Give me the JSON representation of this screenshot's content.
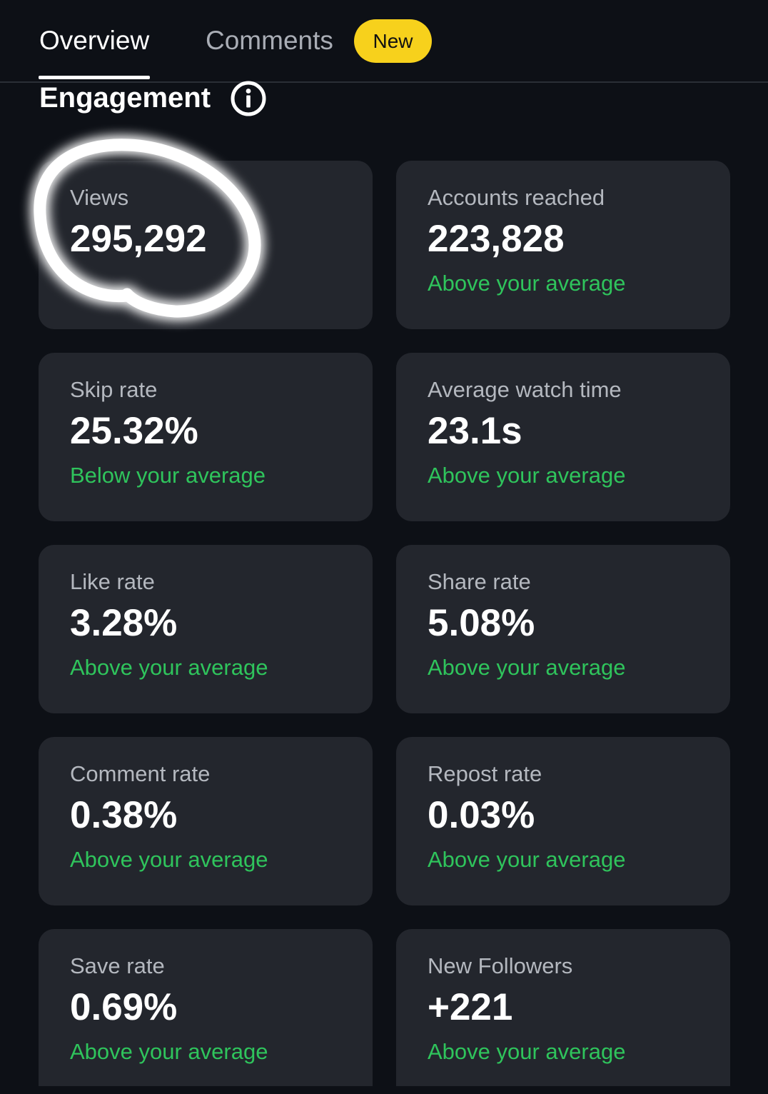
{
  "tabs": [
    {
      "label": "Overview",
      "active": true
    },
    {
      "label": "Comments",
      "active": false
    }
  ],
  "badge": {
    "label": "New",
    "color": "#f7d11c"
  },
  "section": {
    "title": "Engagement",
    "icon": "info-icon"
  },
  "colors": {
    "background": "#0d1016",
    "card": "#23262d",
    "positive": "#2fc45c",
    "label": "#b4b8bf"
  },
  "metrics": [
    {
      "label": "Views",
      "value": "295,292",
      "compare": null,
      "highlighted": true
    },
    {
      "label": "Accounts reached",
      "value": "223,828",
      "compare": "Above your average"
    },
    {
      "label": "Skip rate",
      "value": "25.32%",
      "compare": "Below your average"
    },
    {
      "label": "Average watch time",
      "value": "23.1s",
      "compare": "Above your average"
    },
    {
      "label": "Like rate",
      "value": "3.28%",
      "compare": "Above your average"
    },
    {
      "label": "Share rate",
      "value": "5.08%",
      "compare": "Above your average"
    },
    {
      "label": "Comment rate",
      "value": "0.38%",
      "compare": "Above your average"
    },
    {
      "label": "Repost rate",
      "value": "0.03%",
      "compare": "Above your average"
    },
    {
      "label": "Save rate",
      "value": "0.69%",
      "compare": "Above your average"
    },
    {
      "label": "New Followers",
      "value": "+221",
      "compare": "Above your average"
    }
  ]
}
